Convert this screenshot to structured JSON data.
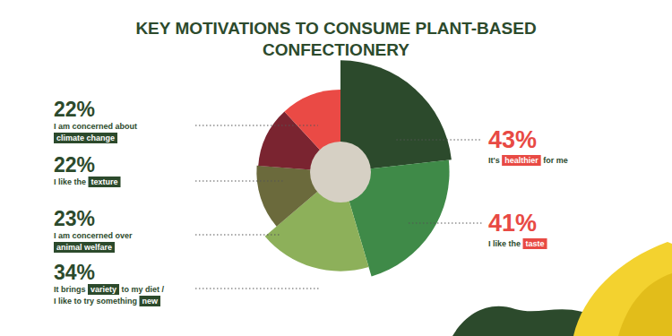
{
  "chart_data": {
    "type": "pie",
    "title": "KEY MOTIVATIONS TO CONSUME PLANT-BASED CONFECTIONERY",
    "categories": [
      "It's healthier for me",
      "I like the taste",
      "It brings variety to my diet / I like to try something new",
      "I am concerned over animal welfare",
      "I like the texture",
      "I am concerned about climate change"
    ],
    "highlights": [
      [
        "healthier"
      ],
      [
        "taste"
      ],
      [
        "variety",
        "new"
      ],
      [
        "animal welfare"
      ],
      [
        "texture"
      ],
      [
        "climate change"
      ]
    ],
    "values": [
      43,
      41,
      34,
      23,
      22,
      22
    ],
    "value_labels": [
      "43%",
      "41%",
      "34%",
      "23%",
      "22%",
      "22%"
    ],
    "colors": [
      "#2c4a2c",
      "#3f8a48",
      "#8db05a",
      "#6b6a3c",
      "#7a2430",
      "#ea4a45"
    ],
    "data_labels": true
  }
}
